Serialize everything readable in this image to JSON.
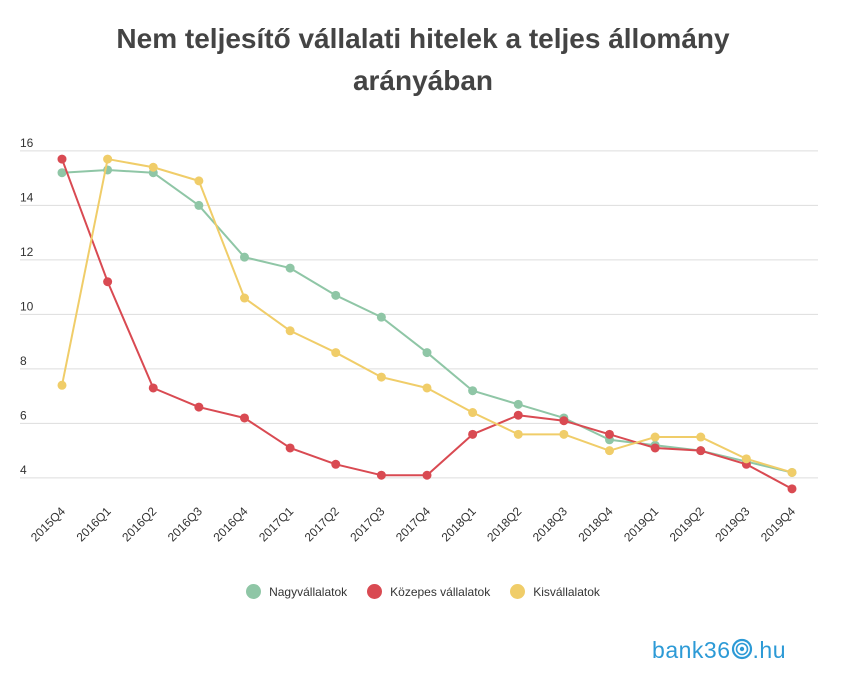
{
  "chart_data": {
    "type": "line",
    "title": [
      "Nem teljesítő vállalati hitelek a teljes állomány",
      "arányában"
    ],
    "xlabel": "",
    "ylabel": "",
    "categories": [
      "2015Q4",
      "2016Q1",
      "2016Q2",
      "2016Q3",
      "2016Q4",
      "2017Q1",
      "2017Q2",
      "2017Q3",
      "2017Q4",
      "2018Q1",
      "2018Q2",
      "2018Q3",
      "2018Q4",
      "2019Q1",
      "2019Q2",
      "2019Q3",
      "2019Q4"
    ],
    "yticks": [
      4,
      6,
      8,
      10,
      12,
      14,
      16
    ],
    "ylim": [
      3.3,
      16.4
    ],
    "grid": true,
    "legend_position": "bottom-center",
    "series": [
      {
        "name": "Nagyvállalatok",
        "color": "#8fc6a6",
        "values": [
          15.2,
          15.3,
          15.2,
          14.0,
          12.1,
          11.7,
          10.7,
          9.9,
          8.6,
          7.2,
          6.7,
          6.2,
          5.4,
          5.2,
          5.0,
          4.6,
          4.2
        ]
      },
      {
        "name": "Közepes vállalatok",
        "color": "#d94a52",
        "values": [
          15.7,
          11.2,
          7.3,
          6.6,
          6.2,
          5.1,
          4.5,
          4.1,
          4.1,
          5.6,
          6.3,
          6.1,
          5.6,
          5.1,
          5.0,
          4.5,
          3.6
        ]
      },
      {
        "name": "Kisvállalatok",
        "color": "#f0cd69",
        "values": [
          7.4,
          15.7,
          15.4,
          14.9,
          10.6,
          9.4,
          8.6,
          7.7,
          7.3,
          6.4,
          5.6,
          5.6,
          5.0,
          5.5,
          5.5,
          4.7,
          4.2
        ]
      }
    ]
  },
  "brand": {
    "left": "bank36",
    "right": ".hu",
    "color": "#2c9ad6",
    "ring_icon": "spiral-icon"
  }
}
